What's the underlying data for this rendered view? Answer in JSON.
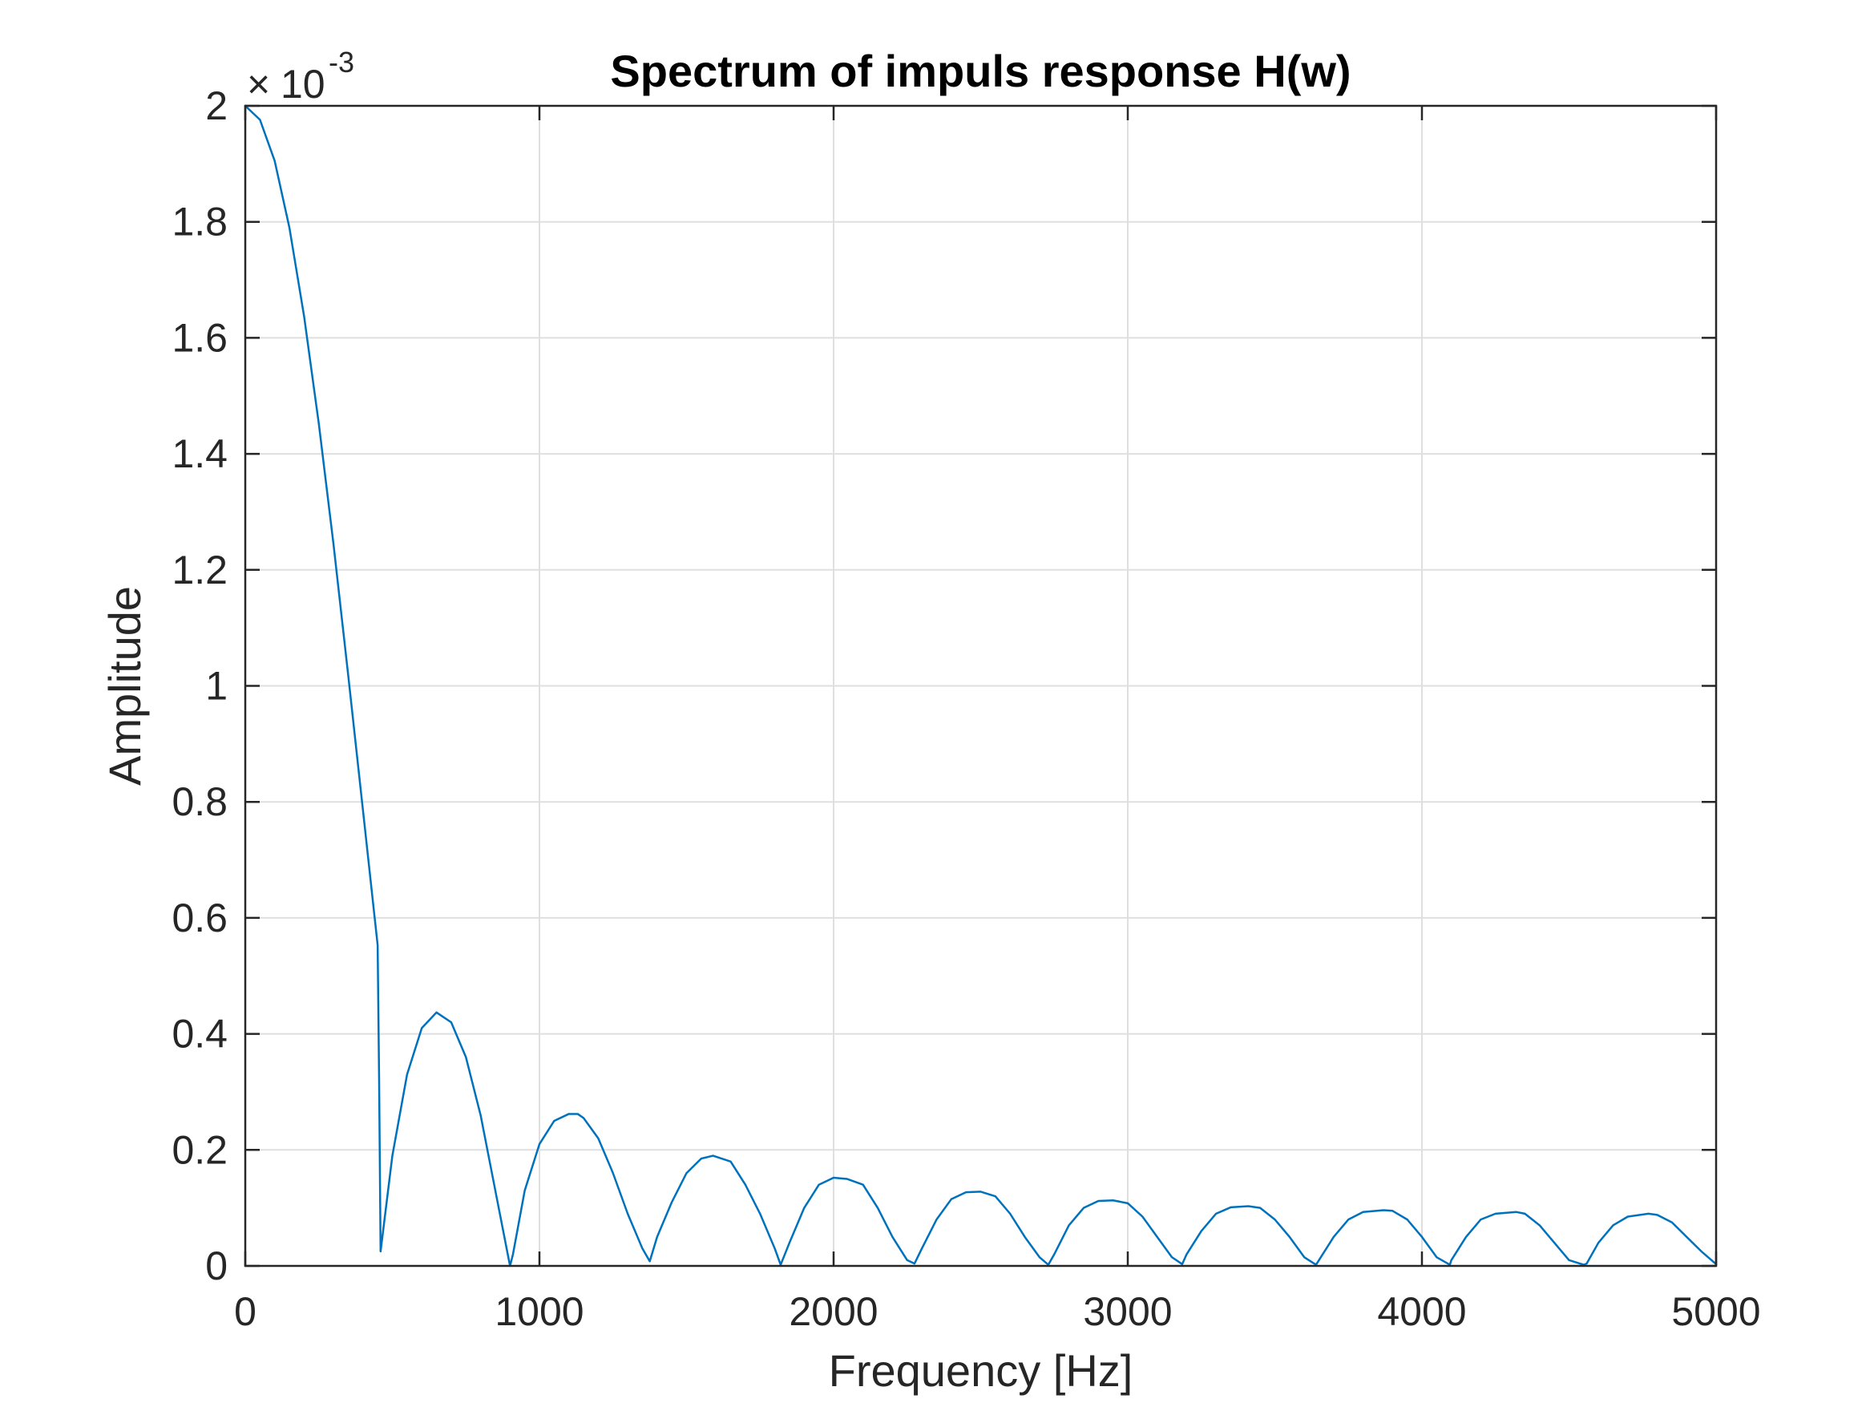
{
  "chart_data": {
    "type": "line",
    "title": "Spectrum of impuls response H(w)",
    "xlabel": "Frequency [Hz]",
    "ylabel": "Amplitude",
    "xlim": [
      0,
      5000
    ],
    "ylim": [
      0,
      2
    ],
    "y_exponent_label": {
      "base": "10",
      "exponent": "-3"
    },
    "xticks": [
      0,
      1000,
      2000,
      3000,
      4000,
      5000
    ],
    "xtick_labels": [
      "0",
      "1000",
      "2000",
      "3000",
      "4000",
      "5000"
    ],
    "yticks": [
      0,
      0.2,
      0.4,
      0.6,
      0.8,
      1,
      1.2,
      1.4,
      1.6,
      1.8,
      2
    ],
    "ytick_labels": [
      "0",
      "0.2",
      "0.4",
      "0.6",
      "0.8",
      "1",
      "1.2",
      "1.4",
      "1.6",
      "1.8",
      "2"
    ],
    "grid": true,
    "box": true,
    "series": [
      {
        "color": "#0072BD",
        "x": [
          0,
          50,
          100,
          150,
          200,
          250,
          300,
          350,
          400,
          450,
          455,
          460,
          500,
          550,
          600,
          650,
          700,
          750,
          800,
          850,
          900,
          910,
          950,
          1000,
          1050,
          1100,
          1130,
          1150,
          1200,
          1250,
          1300,
          1350,
          1375,
          1400,
          1450,
          1500,
          1550,
          1590,
          1650,
          1700,
          1750,
          1800,
          1820,
          1850,
          1900,
          1950,
          2000,
          2045,
          2100,
          2150,
          2200,
          2250,
          2275,
          2300,
          2350,
          2400,
          2450,
          2500,
          2550,
          2600,
          2650,
          2700,
          2730,
          2750,
          2800,
          2850,
          2900,
          2950,
          3000,
          3050,
          3100,
          3150,
          3185,
          3200,
          3250,
          3300,
          3350,
          3410,
          3450,
          3500,
          3550,
          3600,
          3640,
          3650,
          3700,
          3750,
          3800,
          3870,
          3900,
          3950,
          4000,
          4050,
          4095,
          4100,
          4150,
          4200,
          4250,
          4320,
          4350,
          4400,
          4450,
          4500,
          4550,
          4560,
          4600,
          4650,
          4700,
          4770,
          4800,
          4850,
          4900,
          4950,
          5000
        ],
        "y": [
          2.0,
          1.976,
          1.905,
          1.79,
          1.637,
          1.452,
          1.244,
          1.018,
          0.786,
          0.553,
          0.32,
          0.025,
          0.19,
          0.33,
          0.41,
          0.437,
          0.42,
          0.36,
          0.26,
          0.13,
          0.0,
          0.02,
          0.13,
          0.21,
          0.25,
          0.262,
          0.262,
          0.255,
          0.22,
          0.16,
          0.09,
          0.03,
          0.008,
          0.05,
          0.11,
          0.16,
          0.185,
          0.19,
          0.18,
          0.14,
          0.09,
          0.03,
          0.002,
          0.04,
          0.1,
          0.14,
          0.152,
          0.15,
          0.14,
          0.1,
          0.05,
          0.01,
          0.004,
          0.03,
          0.08,
          0.115,
          0.127,
          0.128,
          0.12,
          0.09,
          0.05,
          0.015,
          0.002,
          0.02,
          0.07,
          0.1,
          0.112,
          0.113,
          0.108,
          0.085,
          0.05,
          0.015,
          0.003,
          0.02,
          0.06,
          0.09,
          0.101,
          0.103,
          0.1,
          0.08,
          0.05,
          0.015,
          0.002,
          0.01,
          0.05,
          0.08,
          0.093,
          0.096,
          0.095,
          0.08,
          0.05,
          0.015,
          0.002,
          0.01,
          0.05,
          0.08,
          0.09,
          0.093,
          0.09,
          0.07,
          0.04,
          0.01,
          0.002,
          0.004,
          0.04,
          0.07,
          0.085,
          0.09,
          0.088,
          0.075,
          0.05,
          0.025,
          0.003
        ]
      }
    ]
  }
}
